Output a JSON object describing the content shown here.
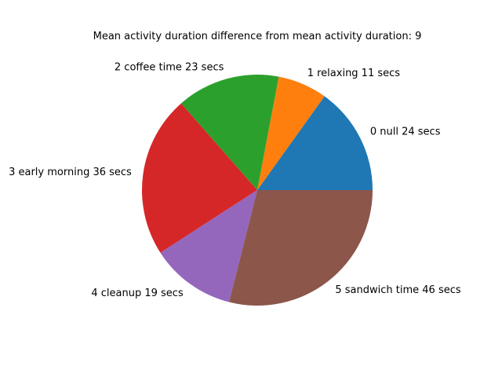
{
  "chart_data": {
    "type": "pie",
    "title": "Mean activity duration difference from mean activity duration: 9",
    "slices": [
      {
        "label": "0 null 24 secs",
        "value": 24,
        "color": "#1f77b4"
      },
      {
        "label": "1 relaxing 11 secs",
        "value": 11,
        "color": "#ff7f0e"
      },
      {
        "label": "2 coffee time 23 secs",
        "value": 23,
        "color": "#2ca02c"
      },
      {
        "label": "3 early morning 36 secs",
        "value": 36,
        "color": "#d62728"
      },
      {
        "label": "4 cleanup 19 secs",
        "value": 19,
        "color": "#9467bd"
      },
      {
        "label": "5 sandwich time 46 secs",
        "value": 46,
        "color": "#8c564b"
      }
    ],
    "start_angle_deg": 0,
    "direction": "counterclockwise",
    "legend": "none"
  }
}
